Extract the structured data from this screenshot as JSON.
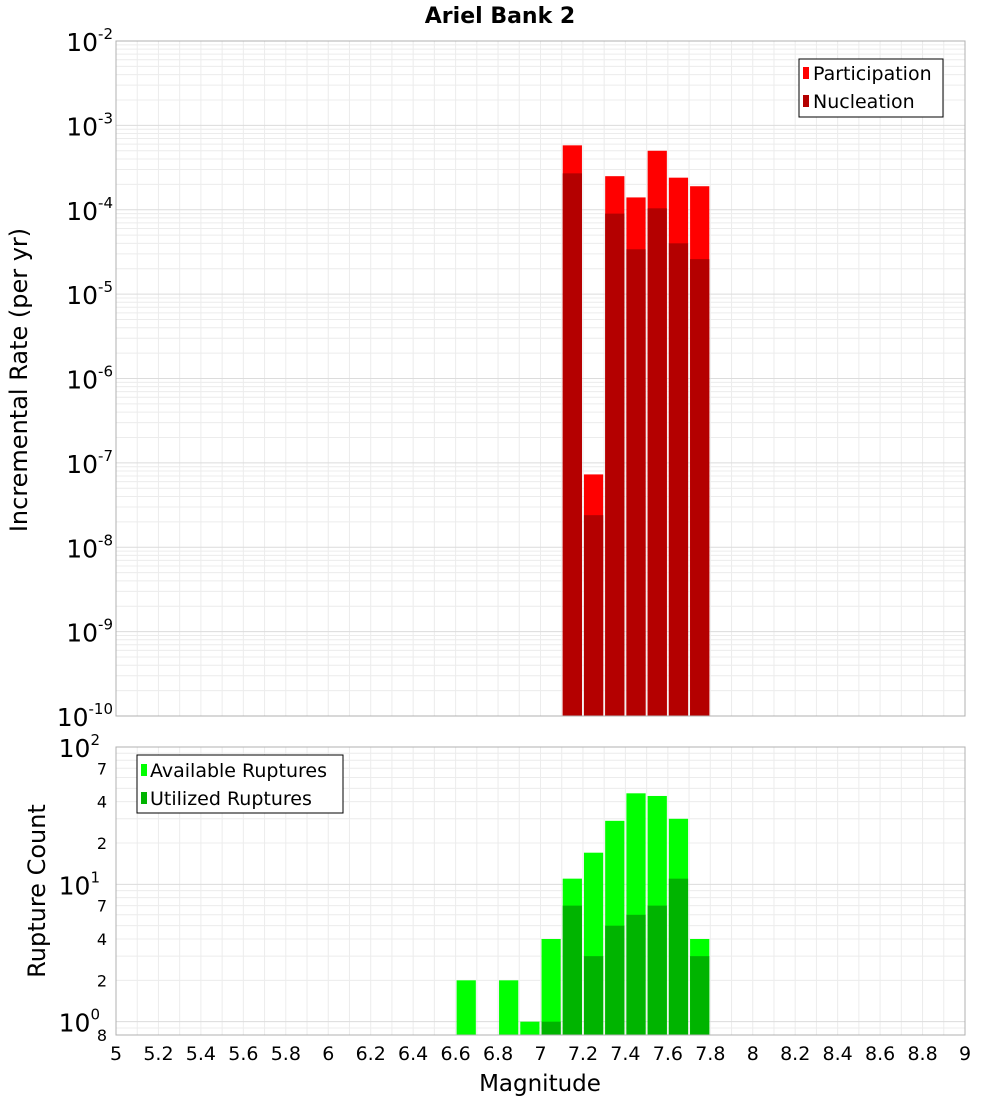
{
  "chart_data": [
    {
      "id": "rates",
      "type": "bar",
      "title": "Ariel Bank 2",
      "ylabel": "Incremental Rate (per yr)",
      "yscale": "log",
      "ylim_log10": [
        -10,
        -2
      ],
      "xlim": [
        5,
        9
      ],
      "bin_width": 0.1,
      "legend": "top-right",
      "grid": true,
      "y_ticks": [
        {
          "base": "10",
          "exp": "-2"
        },
        {
          "base": "10",
          "exp": "-3"
        },
        {
          "base": "10",
          "exp": "-4"
        },
        {
          "base": "10",
          "exp": "-5"
        },
        {
          "base": "10",
          "exp": "-6"
        },
        {
          "base": "10",
          "exp": "-7"
        },
        {
          "base": "10",
          "exp": "-8"
        },
        {
          "base": "10",
          "exp": "-9"
        },
        {
          "base": "10",
          "exp": "-10"
        }
      ],
      "series": [
        {
          "name": "Participation",
          "color": "#ff0000",
          "x": [
            7.1,
            7.2,
            7.3,
            7.4,
            7.5,
            7.6,
            7.7
          ],
          "values": [
            0.00058,
            7.3e-08,
            0.00025,
            0.00014,
            0.0005,
            0.00024,
            0.00019
          ]
        },
        {
          "name": "Nucleation",
          "color": "#b40000",
          "x": [
            7.1,
            7.2,
            7.3,
            7.4,
            7.5,
            7.6,
            7.7
          ],
          "values": [
            0.00027,
            2.4e-08,
            9e-05,
            3.4e-05,
            0.000104,
            4e-05,
            2.6e-05
          ]
        }
      ]
    },
    {
      "id": "counts",
      "type": "bar",
      "xlabel": "Magnitude",
      "ylabel": "Rupture Count",
      "yscale": "log",
      "ylim_log10": [
        -0.097,
        2
      ],
      "xlim": [
        5,
        9
      ],
      "bin_width": 0.1,
      "legend": "top-left",
      "grid": true,
      "x_ticks": [
        "5",
        "5.2",
        "5.4",
        "5.6",
        "5.8",
        "6",
        "6.2",
        "6.4",
        "6.6",
        "6.8",
        "7",
        "7.2",
        "7.4",
        "7.6",
        "7.8",
        "8",
        "8.2",
        "8.4",
        "8.6",
        "8.8",
        "9"
      ],
      "y_major_ticks": [
        {
          "base": "10",
          "exp": "2"
        },
        {
          "base": "10",
          "exp": "1"
        },
        {
          "base": "10",
          "exp": "0"
        }
      ],
      "y_minor_ticks": [
        {
          "value": 70,
          "label": "7"
        },
        {
          "value": 40,
          "label": "4"
        },
        {
          "value": 20,
          "label": "2"
        },
        {
          "value": 7,
          "label": "7"
        },
        {
          "value": 4,
          "label": "4"
        },
        {
          "value": 2,
          "label": "2"
        },
        {
          "value": 0.8,
          "label": "8"
        }
      ],
      "series": [
        {
          "name": "Available Ruptures",
          "color": "#00ff00",
          "x": [
            6.6,
            6.8,
            6.9,
            7.0,
            7.1,
            7.2,
            7.3,
            7.4,
            7.5,
            7.6,
            7.7
          ],
          "values": [
            2,
            2,
            1,
            4,
            11,
            17,
            29,
            46,
            44,
            30,
            4
          ]
        },
        {
          "name": "Utilized Ruptures",
          "color": "#00b400",
          "x": [
            6.9,
            7.0,
            7.1,
            7.2,
            7.3,
            7.4,
            7.5,
            7.6,
            7.7
          ],
          "values": [
            0,
            1,
            7,
            3,
            5,
            6,
            7,
            11,
            3
          ]
        }
      ]
    }
  ]
}
